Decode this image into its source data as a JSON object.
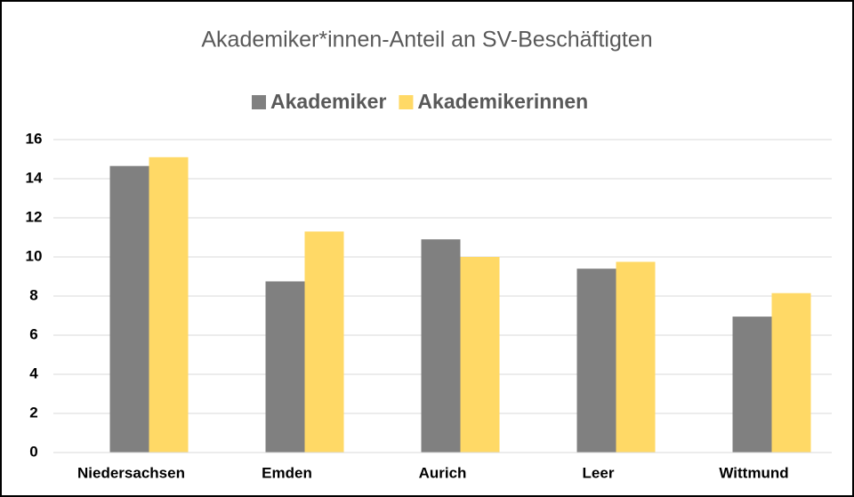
{
  "chart_data": {
    "type": "bar",
    "title": "Akademiker*innen-Anteil an SV-Beschäftigten",
    "categories": [
      "Niedersachsen",
      "Emden",
      "Aurich",
      "Leer",
      "Wittmund"
    ],
    "series": [
      {
        "name": "Akademiker",
        "color": "#808080",
        "values": [
          14.65,
          8.75,
          10.9,
          9.4,
          6.95
        ]
      },
      {
        "name": "Akademikerinnen",
        "color": "#ffd966",
        "values": [
          15.1,
          11.3,
          10.0,
          9.75,
          8.15
        ]
      }
    ],
    "ylim": [
      0,
      16
    ],
    "yticks": [
      0,
      2,
      4,
      6,
      8,
      10,
      12,
      14,
      16
    ],
    "grid": true,
    "legend": "top"
  }
}
